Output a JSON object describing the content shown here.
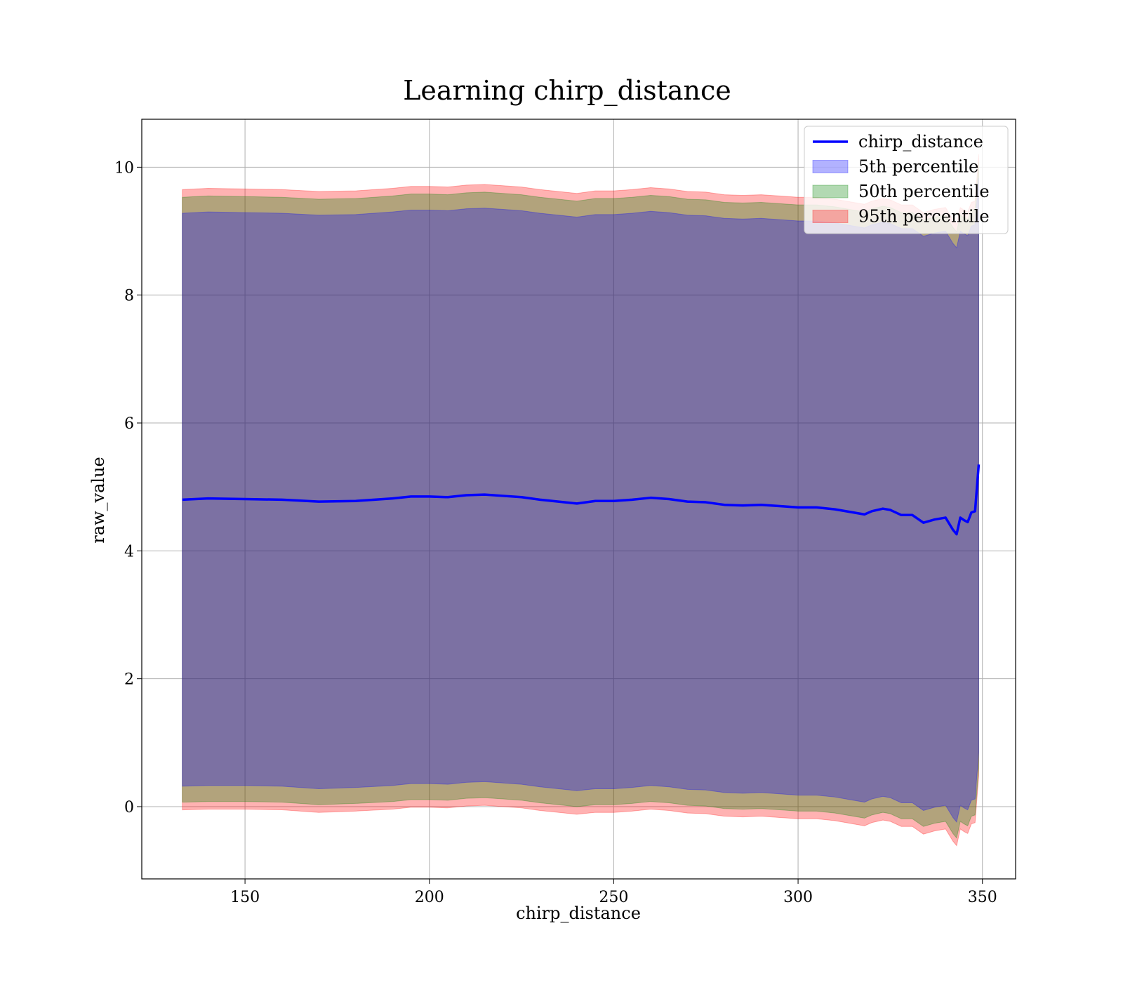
{
  "chart_data": {
    "type": "area",
    "title": "Learning chirp_distance",
    "xlabel": "chirp_distance",
    "ylabel": "raw_value",
    "xlim": [
      122,
      359
    ],
    "ylim": [
      -1.13,
      10.75
    ],
    "xticks": [
      150,
      200,
      250,
      300,
      350
    ],
    "yticks": [
      0,
      2,
      4,
      6,
      8,
      10
    ],
    "grid": true,
    "legend_position": "upper right",
    "legend": [
      "chirp_distance",
      "5th percentile",
      "50th percentile",
      "95th percentile"
    ],
    "x": [
      133,
      140,
      150,
      160,
      170,
      180,
      190,
      195,
      200,
      205,
      210,
      215,
      220,
      225,
      230,
      235,
      240,
      245,
      250,
      255,
      260,
      265,
      270,
      275,
      280,
      285,
      290,
      295,
      300,
      305,
      310,
      315,
      318,
      320,
      323,
      325,
      328,
      331,
      334,
      337,
      340,
      342,
      343,
      344,
      345,
      346,
      347,
      348,
      349
    ],
    "series": [
      {
        "name": "chirp_distance",
        "kind": "line",
        "color": "#0000ff",
        "values": [
          4.8,
          4.82,
          4.81,
          4.8,
          4.77,
          4.78,
          4.82,
          4.85,
          4.85,
          4.84,
          4.87,
          4.88,
          4.86,
          4.84,
          4.8,
          4.77,
          4.74,
          4.78,
          4.78,
          4.8,
          4.83,
          4.81,
          4.77,
          4.76,
          4.72,
          4.71,
          4.72,
          4.7,
          4.68,
          4.68,
          4.65,
          4.6,
          4.57,
          4.62,
          4.66,
          4.64,
          4.56,
          4.56,
          4.44,
          4.49,
          4.52,
          4.33,
          4.26,
          4.52,
          4.48,
          4.45,
          4.6,
          4.62,
          5.35
        ]
      },
      {
        "name": "5th percentile",
        "kind": "band",
        "color": "#0000ff",
        "lower": [
          0.32,
          0.33,
          0.33,
          0.32,
          0.28,
          0.3,
          0.33,
          0.36,
          0.36,
          0.35,
          0.38,
          0.39,
          0.37,
          0.35,
          0.31,
          0.28,
          0.25,
          0.28,
          0.28,
          0.3,
          0.33,
          0.31,
          0.27,
          0.26,
          0.22,
          0.21,
          0.22,
          0.2,
          0.18,
          0.18,
          0.15,
          0.1,
          0.07,
          0.12,
          0.16,
          0.14,
          0.06,
          0.06,
          -0.06,
          -0.01,
          0.02,
          -0.17,
          -0.24,
          0.02,
          -0.02,
          -0.05,
          0.1,
          0.12,
          0.85
        ],
        "upper": [
          9.28,
          9.3,
          9.29,
          9.28,
          9.25,
          9.26,
          9.3,
          9.33,
          9.33,
          9.32,
          9.35,
          9.36,
          9.34,
          9.32,
          9.28,
          9.25,
          9.22,
          9.26,
          9.26,
          9.28,
          9.31,
          9.29,
          9.25,
          9.24,
          9.2,
          9.19,
          9.2,
          9.18,
          9.16,
          9.16,
          9.13,
          9.08,
          9.05,
          9.1,
          9.14,
          9.12,
          9.04,
          9.04,
          8.92,
          8.97,
          9.0,
          8.81,
          8.74,
          9.0,
          8.96,
          8.93,
          9.08,
          9.1,
          9.83
        ]
      },
      {
        "name": "50th percentile",
        "kind": "band",
        "color": "#008000",
        "lower": [
          0.07,
          0.08,
          0.08,
          0.07,
          0.03,
          0.05,
          0.08,
          0.11,
          0.11,
          0.1,
          0.13,
          0.14,
          0.12,
          0.1,
          0.06,
          0.03,
          0.0,
          0.03,
          0.03,
          0.05,
          0.08,
          0.06,
          0.02,
          0.01,
          -0.03,
          -0.04,
          -0.03,
          -0.05,
          -0.07,
          -0.07,
          -0.1,
          -0.15,
          -0.18,
          -0.13,
          -0.09,
          -0.11,
          -0.19,
          -0.19,
          -0.31,
          -0.26,
          -0.23,
          -0.42,
          -0.49,
          -0.23,
          -0.27,
          -0.3,
          -0.15,
          -0.13,
          0.6
        ],
        "upper": [
          9.53,
          9.55,
          9.54,
          9.53,
          9.5,
          9.51,
          9.55,
          9.58,
          9.58,
          9.57,
          9.6,
          9.61,
          9.59,
          9.57,
          9.53,
          9.5,
          9.47,
          9.51,
          9.51,
          9.53,
          9.56,
          9.54,
          9.5,
          9.49,
          9.45,
          9.44,
          9.45,
          9.43,
          9.41,
          9.41,
          9.38,
          9.33,
          9.3,
          9.35,
          9.39,
          9.37,
          9.29,
          9.29,
          9.17,
          9.22,
          9.25,
          9.06,
          8.99,
          9.25,
          9.21,
          9.18,
          9.33,
          9.35,
          10.08
        ]
      },
      {
        "name": "95th percentile",
        "kind": "band",
        "color": "#ff0000",
        "lower": [
          -0.05,
          -0.04,
          -0.04,
          -0.05,
          -0.09,
          -0.07,
          -0.04,
          -0.01,
          -0.01,
          -0.02,
          0.01,
          0.02,
          0.0,
          -0.02,
          -0.06,
          -0.09,
          -0.12,
          -0.09,
          -0.09,
          -0.07,
          -0.04,
          -0.06,
          -0.1,
          -0.11,
          -0.15,
          -0.16,
          -0.15,
          -0.17,
          -0.19,
          -0.19,
          -0.22,
          -0.27,
          -0.3,
          -0.25,
          -0.21,
          -0.23,
          -0.31,
          -0.31,
          -0.43,
          -0.38,
          -0.35,
          -0.54,
          -0.61,
          -0.35,
          -0.39,
          -0.42,
          -0.27,
          -0.25,
          0.48
        ],
        "upper": [
          9.65,
          9.67,
          9.66,
          9.65,
          9.62,
          9.63,
          9.67,
          9.7,
          9.7,
          9.69,
          9.72,
          9.73,
          9.71,
          9.69,
          9.65,
          9.62,
          9.59,
          9.63,
          9.63,
          9.65,
          9.68,
          9.66,
          9.62,
          9.61,
          9.57,
          9.56,
          9.57,
          9.55,
          9.53,
          9.53,
          9.5,
          9.45,
          9.42,
          9.47,
          9.51,
          9.49,
          9.41,
          9.41,
          9.29,
          9.34,
          9.37,
          9.18,
          9.11,
          9.37,
          9.33,
          9.3,
          9.45,
          9.47,
          10.2
        ]
      }
    ]
  }
}
